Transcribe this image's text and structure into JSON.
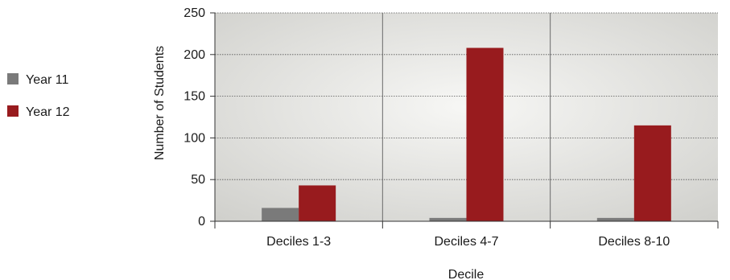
{
  "chart_data": {
    "type": "bar",
    "categories": [
      "Deciles 1-3",
      "Deciles 4-7",
      "Deciles 8-10"
    ],
    "series": [
      {
        "name": "Year 11",
        "values": [
          16,
          4,
          4
        ],
        "color": "#7a7a7a"
      },
      {
        "name": "Year 12",
        "values": [
          43,
          208,
          115
        ],
        "color": "#981b1e"
      }
    ],
    "xlabel": "Decile",
    "ylabel": "Number of Students",
    "ylim": [
      0,
      250
    ],
    "yticks": [
      0,
      50,
      100,
      150,
      200,
      250
    ],
    "grid": true,
    "legend_position": "left"
  }
}
